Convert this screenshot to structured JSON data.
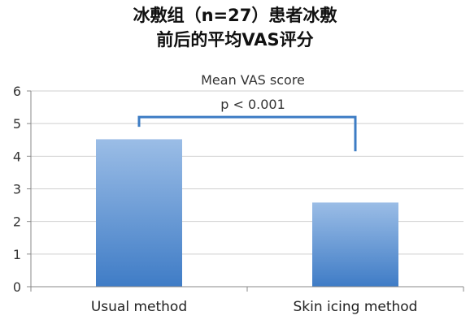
{
  "title_line1": "冰敷组（n=27）患者冰敷",
  "title_line2": "前后的平均VAS评分",
  "chart_data": {
    "type": "bar",
    "subtitle": "Mean VAS score",
    "categories": [
      "Usual method",
      "Skin icing method"
    ],
    "values": [
      4.52,
      2.58
    ],
    "ylim": [
      0,
      6
    ],
    "yticks": [
      "0",
      "1",
      "2",
      "3",
      "4",
      "5",
      "6"
    ],
    "significance_label": "p < 0.001",
    "grid": true,
    "colors": {
      "bar_top": "#9bbde6",
      "bar_bottom": "#3f7cc6",
      "bracket": "#3d7cc4",
      "grid": "#cfcfcf",
      "axis": "#888888"
    }
  }
}
